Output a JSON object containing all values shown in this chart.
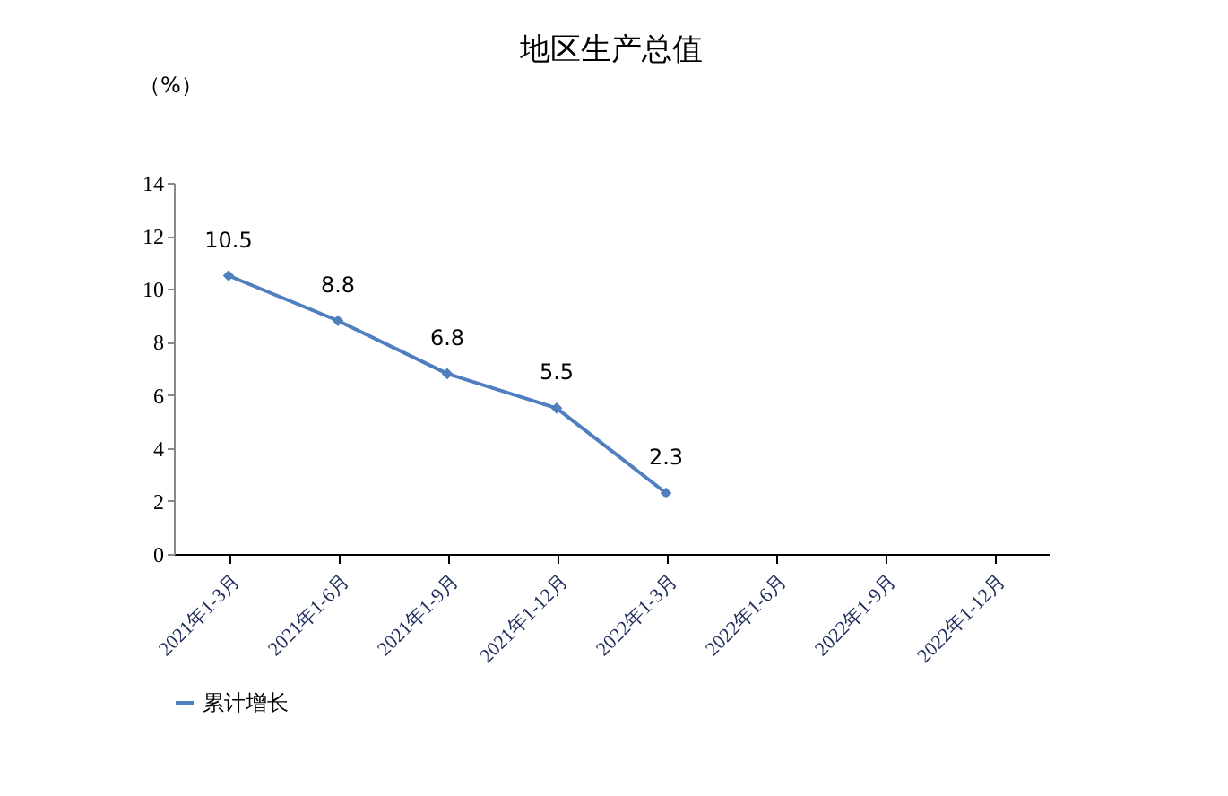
{
  "chart_data": {
    "type": "line",
    "title": "地区生产总值",
    "ylabel": "（%）",
    "categories": [
      "2021年1-3月",
      "2021年1-6月",
      "2021年1-9月",
      "2021年1-12月",
      "2022年1-3月",
      "2022年1-6月",
      "2022年1-9月",
      "2022年1-12月"
    ],
    "series": [
      {
        "name": "累计增长",
        "color": "#4f7fbf",
        "values": [
          10.5,
          8.8,
          6.8,
          5.5,
          2.3,
          null,
          null,
          null
        ]
      }
    ],
    "ylim": [
      0,
      14
    ],
    "yticks": [
      0,
      2,
      4,
      6,
      8,
      10,
      12,
      14
    ],
    "grid": false,
    "legend": "bottom",
    "marker": "diamond",
    "line_style": "solid",
    "data_labels": true
  }
}
